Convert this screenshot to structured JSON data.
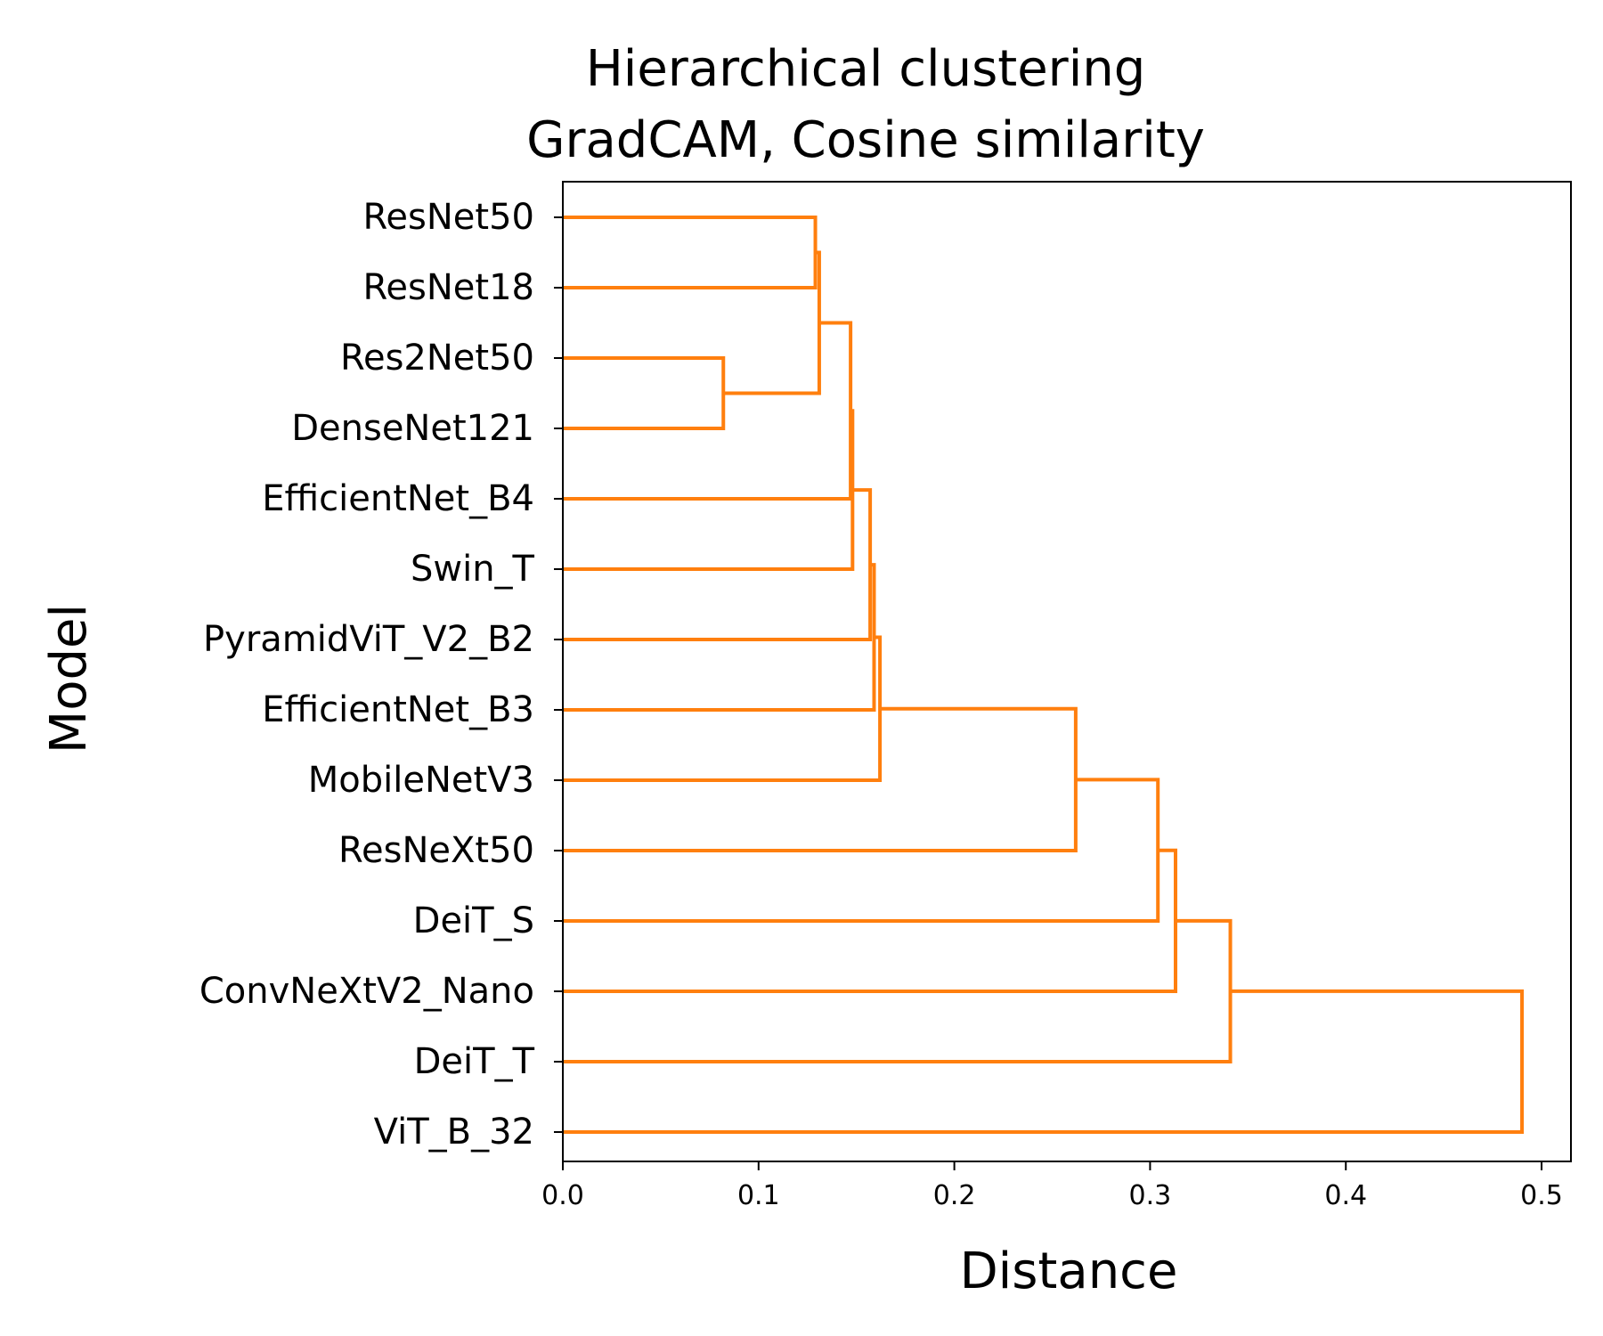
{
  "chart_data": {
    "type": "dendrogram",
    "title": [
      "Hierarchical clustering",
      "GradCAM, Cosine similarity"
    ],
    "xlabel": "Distance",
    "ylabel": "Model",
    "xlim": [
      0.0,
      0.515
    ],
    "xticks": [
      "0.0",
      "0.1",
      "0.2",
      "0.3",
      "0.4",
      "0.5"
    ],
    "leaves": [
      "ResNet50",
      "ResNet18",
      "Res2Net50",
      "DenseNet121",
      "EfficientNet_B4",
      "Swin_T",
      "PyramidViT_V2_B2",
      "EfficientNet_B3",
      "MobileNetV3",
      "ResNeXt50",
      "DeiT_S",
      "ConvNeXtV2_Nano",
      "DeiT_T",
      "ViT_B_32"
    ],
    "link_color": "#ff7f0e",
    "merges": [
      {
        "a": "ResNet50",
        "b": "ResNet18",
        "distance": 0.129
      },
      {
        "a": "Res2Net50",
        "b": "DenseNet121",
        "distance": 0.082
      },
      {
        "a": 0,
        "b": 1,
        "distance": 0.131
      },
      {
        "a": 2,
        "b": "EfficientNet_B4",
        "distance": 0.147
      },
      {
        "a": 3,
        "b": "Swin_T",
        "distance": 0.148
      },
      {
        "a": 4,
        "b": "PyramidViT_V2_B2",
        "distance": 0.157
      },
      {
        "a": 5,
        "b": "EfficientNet_B3",
        "distance": 0.159
      },
      {
        "a": 6,
        "b": "MobileNetV3",
        "distance": 0.162
      },
      {
        "a": 7,
        "b": "ResNeXt50",
        "distance": 0.262
      },
      {
        "a": 8,
        "b": "DeiT_S",
        "distance": 0.304
      },
      {
        "a": 9,
        "b": "ConvNeXtV2_Nano",
        "distance": 0.313
      },
      {
        "a": 10,
        "b": "DeiT_T",
        "distance": 0.341
      },
      {
        "a": 11,
        "b": "ViT_B_32",
        "distance": 0.49
      }
    ]
  }
}
